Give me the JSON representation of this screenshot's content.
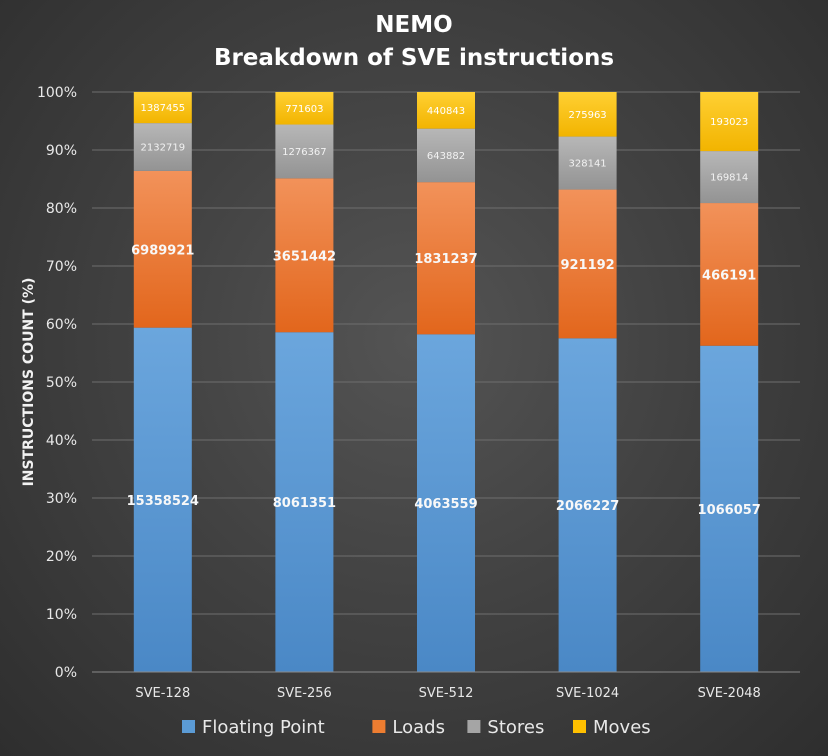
{
  "chart_data": {
    "type": "bar",
    "stacked": "percent",
    "title": "NEMO",
    "subtitle": "Breakdown of SVE instructions",
    "ylabel": "INSTRUCTIONS COUNT (%)",
    "xlabel": "",
    "ylim": [
      0,
      100
    ],
    "y_ticks": [
      "0%",
      "10%",
      "20%",
      "30%",
      "40%",
      "50%",
      "60%",
      "70%",
      "80%",
      "90%",
      "100%"
    ],
    "grid": true,
    "legend": "bottom",
    "categories": [
      "SVE-128",
      "SVE-256",
      "SVE-512",
      "SVE-1024",
      "SVE-2048"
    ],
    "series": [
      {
        "name": "Floating Point",
        "color": "#5b9bd5",
        "values": [
          15358524,
          8061351,
          4063559,
          2066227,
          1066057
        ]
      },
      {
        "name": "Loads",
        "color": "#ed7d31",
        "values": [
          6989921,
          3651442,
          1831237,
          921192,
          466191
        ]
      },
      {
        "name": "Stores",
        "color": "#a5a5a5",
        "values": [
          2132719,
          1276367,
          643882,
          328141,
          169814
        ]
      },
      {
        "name": "Moves",
        "color": "#ffc000",
        "values": [
          1387455,
          771603,
          440843,
          275963,
          193023
        ]
      }
    ]
  }
}
